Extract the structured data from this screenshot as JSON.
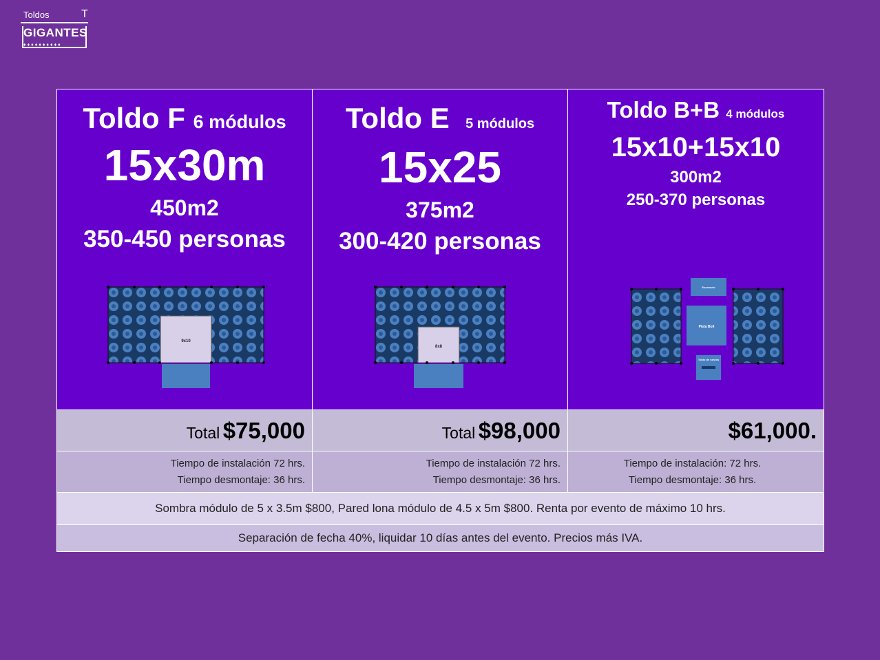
{
  "logo": {
    "top_text": "Toldos",
    "name": "GIGANTES"
  },
  "tents": [
    {
      "title": "Toldo F",
      "modules": "6 módulos",
      "size": "15x30m",
      "area": "450m2",
      "people": "350-450 personas",
      "plan_label": "9x10"
    },
    {
      "title": "Toldo E",
      "modules": "5 módulos",
      "size": "15x25",
      "area": "375m2",
      "people": "300-420 personas",
      "plan_label": "8x8"
    },
    {
      "title": "Toldo B+B",
      "modules": "4 módulos",
      "size": "15x10+15x10",
      "area": "300m2",
      "people": "250-370 personas",
      "plan_labels": [
        "Escenario",
        "Pista Boll",
        "Toldo de novios"
      ]
    }
  ],
  "prices": [
    {
      "label": "Total",
      "value": "$75,000"
    },
    {
      "label": "Total",
      "value": "$98,000"
    },
    {
      "label": "",
      "value": "$61,000."
    }
  ],
  "times": [
    {
      "install": "Tiempo de instalación 72 hrs.",
      "dismount": "Tiempo desmontaje: 36 hrs."
    },
    {
      "install": "Tiempo de instalación 72 hrs.",
      "dismount": "Tiempo desmontaje: 36 hrs."
    },
    {
      "install": "Tiempo de instalación: 72 hrs.",
      "dismount": "Tiempo desmontaje: 36 hrs."
    }
  ],
  "notes": [
    "Sombra módulo de 5 x 3.5m $800, Pared lona  módulo de 4.5 x 5m $800. Renta por evento de máximo 10 hrs.",
    "Separación de fecha 40%, liquidar 10 días antes del evento. Precios más IVA."
  ],
  "colors": {
    "background": "#70309c",
    "header_cell": "#6600cc",
    "price_row": "#c4bcd6",
    "plan_fill": "#1a3a66",
    "plan_floor": "#4a7fc0"
  }
}
